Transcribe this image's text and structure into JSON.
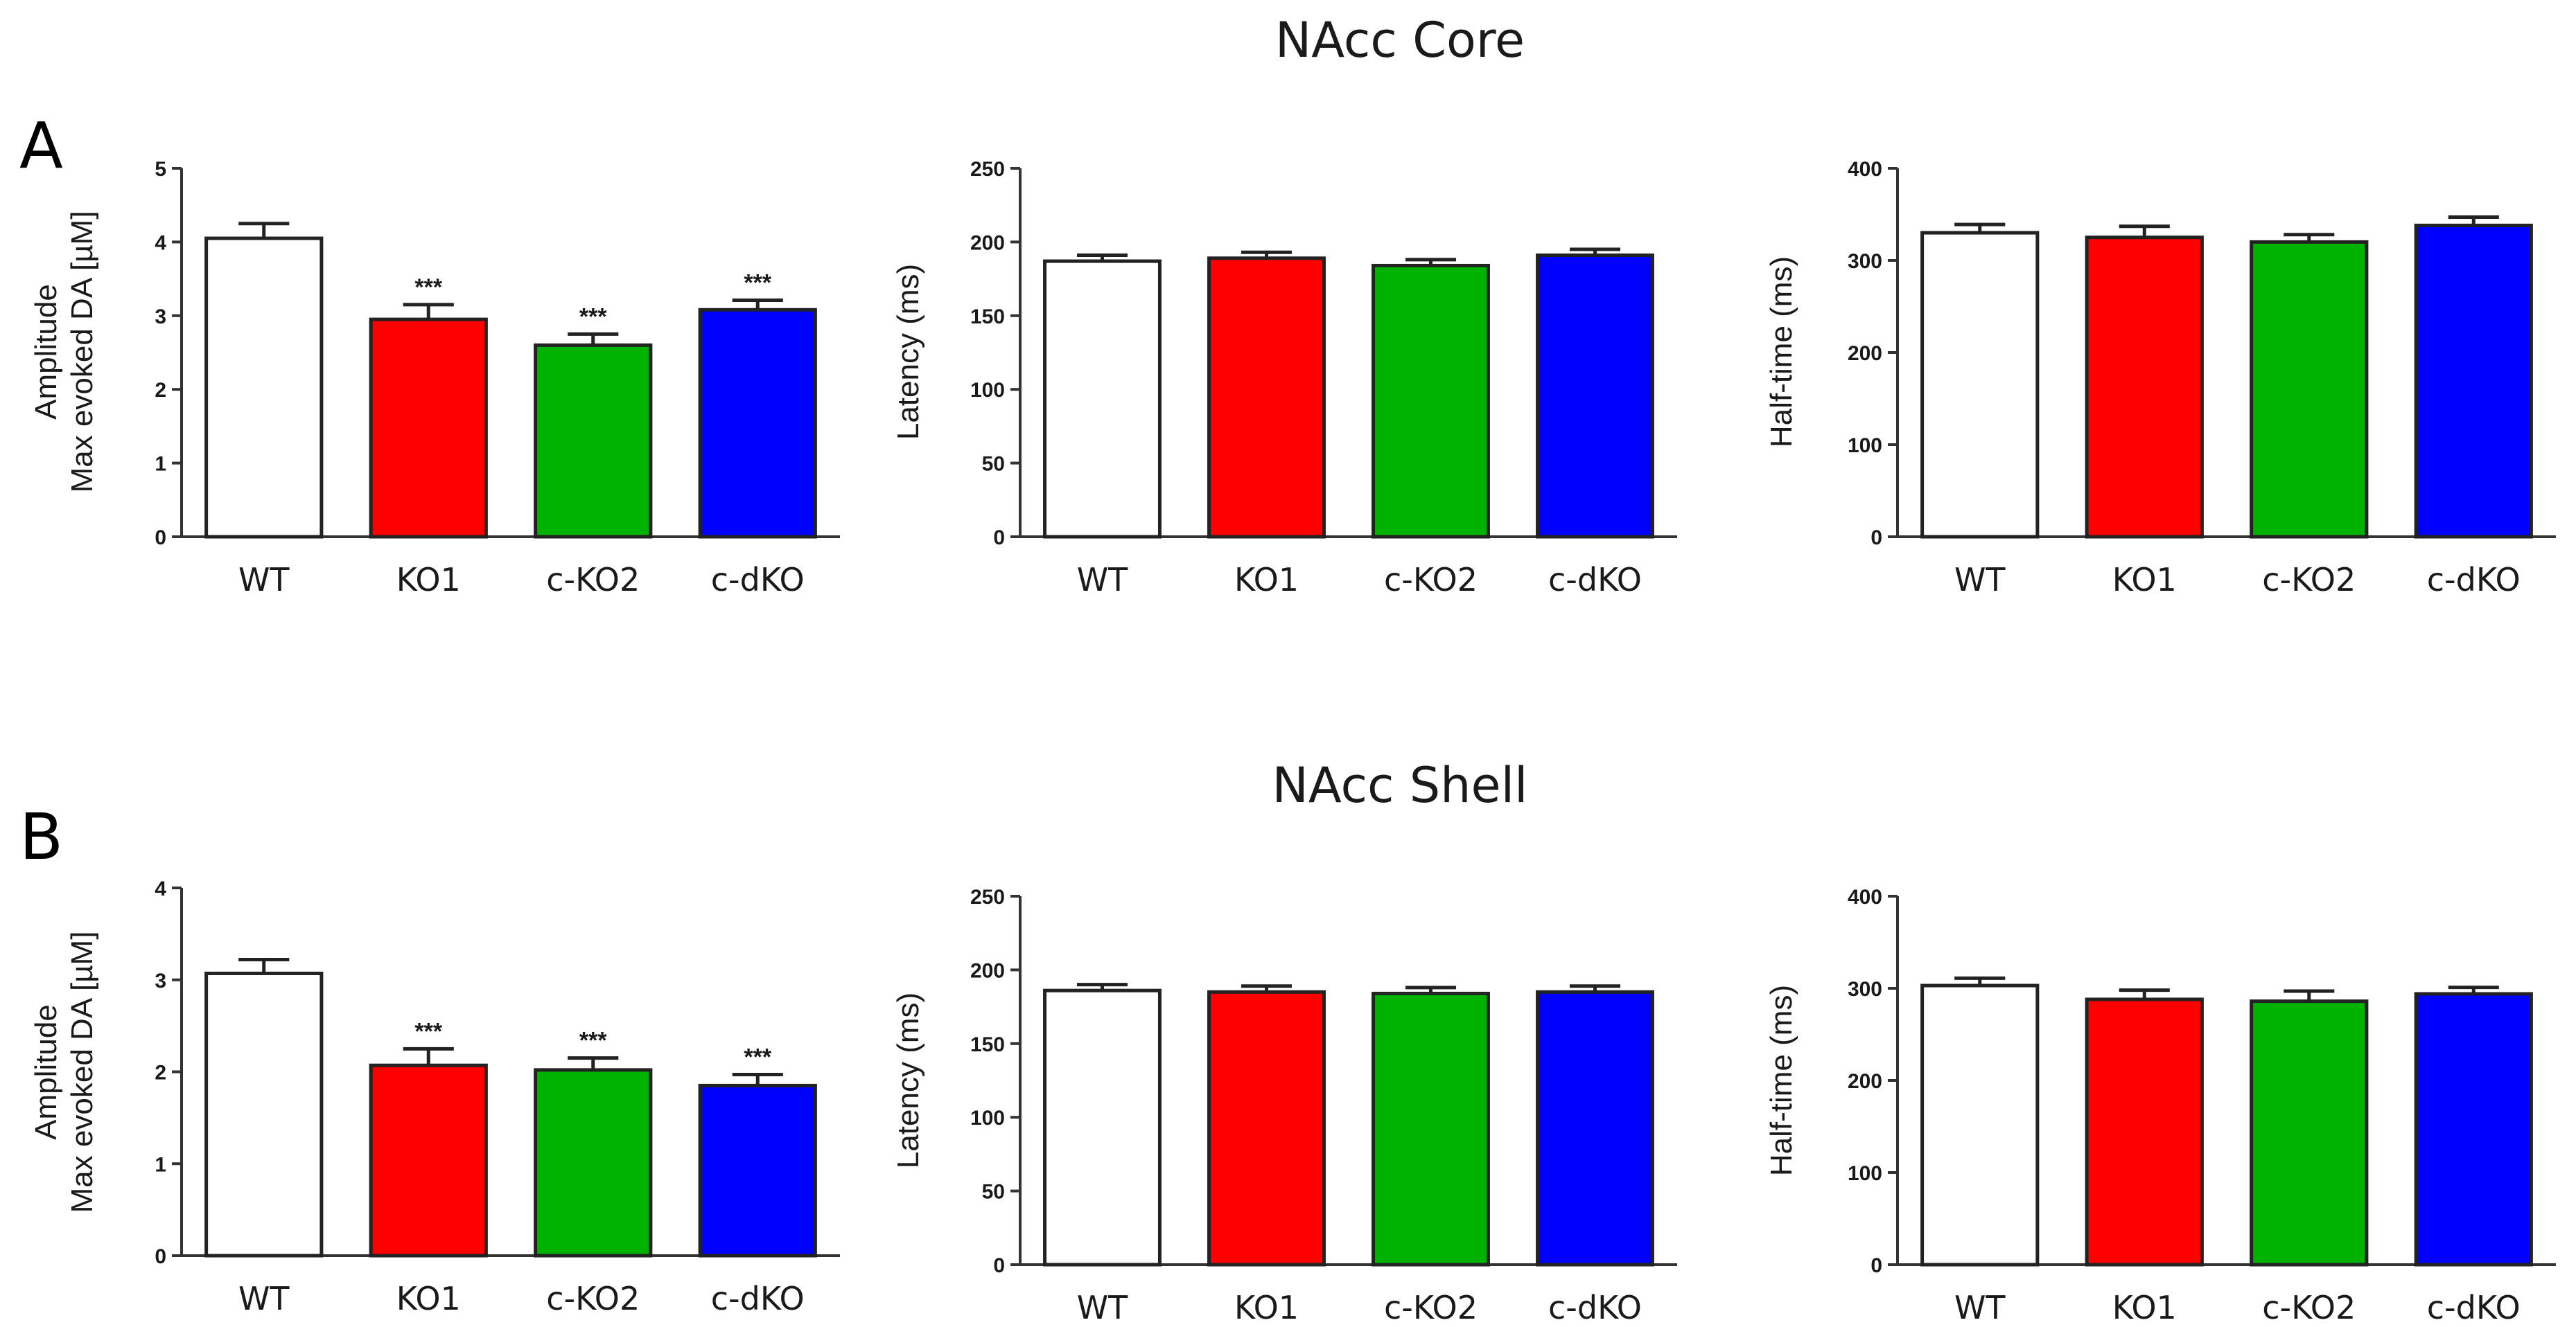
{
  "figure": {
    "panel_titles": [
      "NAcc Core",
      "NAcc Shell"
    ],
    "panel_letters": [
      "A",
      "B"
    ]
  },
  "chart_data": [
    {
      "type": "bar",
      "row": "NAcc Core",
      "panel": "A",
      "title": "",
      "xlabel": "",
      "ylabel": [
        "Amplitude",
        "Max evoked DA [µM]"
      ],
      "categories": [
        "WT",
        "KO1",
        "c-KO2",
        "c-dKO"
      ],
      "values": [
        4.05,
        2.95,
        2.6,
        3.08
      ],
      "errors": [
        0.2,
        0.2,
        0.15,
        0.13
      ],
      "significance": [
        "",
        "***",
        "***",
        "***"
      ],
      "colors": [
        "#ffffff",
        "#ff0000",
        "#00b200",
        "#0000ff"
      ],
      "ylim": [
        0,
        5
      ],
      "yticks": [
        "0",
        "1",
        "2",
        "3",
        "4",
        "5"
      ],
      "grid": false
    },
    {
      "type": "bar",
      "row": "NAcc Core",
      "panel": "A",
      "title": "",
      "xlabel": "",
      "ylabel": [
        "Latency (ms)"
      ],
      "categories": [
        "WT",
        "KO1",
        "c-KO2",
        "c-dKO"
      ],
      "values": [
        187,
        189,
        184,
        191
      ],
      "errors": [
        4,
        4,
        4,
        4
      ],
      "significance": [
        "",
        "",
        "",
        ""
      ],
      "colors": [
        "#ffffff",
        "#ff0000",
        "#00b200",
        "#0000ff"
      ],
      "ylim": [
        0,
        250
      ],
      "yticks": [
        "0",
        "50",
        "100",
        "150",
        "200",
        "250"
      ],
      "grid": false
    },
    {
      "type": "bar",
      "row": "NAcc Core",
      "panel": "A",
      "title": "",
      "xlabel": "",
      "ylabel": [
        "Half-time (ms)"
      ],
      "categories": [
        "WT",
        "KO1",
        "c-KO2",
        "c-dKO"
      ],
      "values": [
        330,
        325,
        320,
        338
      ],
      "errors": [
        9,
        12,
        8,
        9
      ],
      "significance": [
        "",
        "",
        "",
        ""
      ],
      "colors": [
        "#ffffff",
        "#ff0000",
        "#00b200",
        "#0000ff"
      ],
      "ylim": [
        0,
        400
      ],
      "yticks": [
        "0",
        "100",
        "200",
        "300",
        "400"
      ],
      "grid": false
    },
    {
      "type": "bar",
      "row": "NAcc Shell",
      "panel": "B",
      "title": "",
      "xlabel": "",
      "ylabel": [
        "Amplitude",
        "Max evoked DA [µM]"
      ],
      "categories": [
        "WT",
        "KO1",
        "c-KO2",
        "c-dKO"
      ],
      "values": [
        3.07,
        2.07,
        2.02,
        1.85
      ],
      "errors": [
        0.15,
        0.18,
        0.13,
        0.12
      ],
      "significance": [
        "",
        "***",
        "***",
        "***"
      ],
      "colors": [
        "#ffffff",
        "#ff0000",
        "#00b200",
        "#0000ff"
      ],
      "ylim": [
        0,
        4
      ],
      "yticks": [
        "0",
        "1",
        "2",
        "3",
        "4"
      ],
      "grid": false
    },
    {
      "type": "bar",
      "row": "NAcc Shell",
      "panel": "B",
      "title": "",
      "xlabel": "",
      "ylabel": [
        "Latency (ms)"
      ],
      "categories": [
        "WT",
        "KO1",
        "c-KO2",
        "c-dKO"
      ],
      "values": [
        186,
        185,
        184,
        185
      ],
      "errors": [
        4,
        4,
        4,
        4
      ],
      "significance": [
        "",
        "",
        "",
        ""
      ],
      "colors": [
        "#ffffff",
        "#ff0000",
        "#00b200",
        "#0000ff"
      ],
      "ylim": [
        0,
        250
      ],
      "yticks": [
        "0",
        "50",
        "100",
        "150",
        "200",
        "250"
      ],
      "grid": false
    },
    {
      "type": "bar",
      "row": "NAcc Shell",
      "panel": "B",
      "title": "",
      "xlabel": "",
      "ylabel": [
        "Half-time (ms)"
      ],
      "categories": [
        "WT",
        "KO1",
        "c-KO2",
        "c-dKO"
      ],
      "values": [
        303,
        288,
        286,
        294
      ],
      "errors": [
        8,
        10,
        11,
        7
      ],
      "significance": [
        "",
        "",
        "",
        ""
      ],
      "colors": [
        "#ffffff",
        "#ff0000",
        "#00b200",
        "#0000ff"
      ],
      "ylim": [
        0,
        400
      ],
      "yticks": [
        "0",
        "100",
        "200",
        "300",
        "400"
      ],
      "grid": false
    }
  ]
}
